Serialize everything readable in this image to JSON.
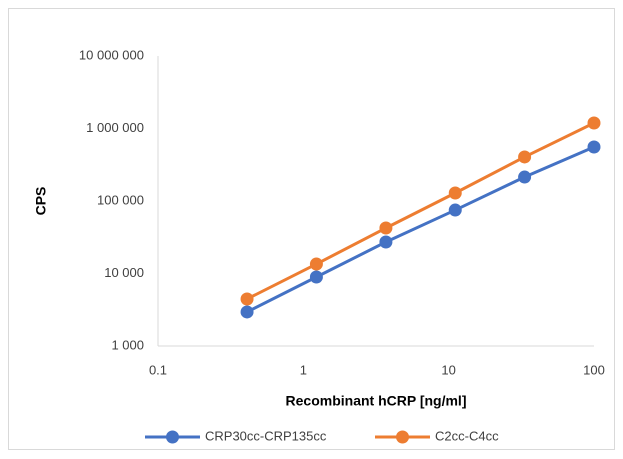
{
  "chart_data": {
    "type": "line",
    "xlabel": "Recombinant hCRP [ng/ml]",
    "ylabel": "CPS",
    "x": [
      0.41,
      1.23,
      3.7,
      11.1,
      33.3,
      100
    ],
    "series": [
      {
        "name": "CRP30cc-CRP135cc",
        "color": "#4472c4",
        "values": [
          2950,
          8950,
          27200,
          75000,
          214000,
          556000
        ]
      },
      {
        "name": "C2cc-C4cc",
        "color": "#ed7d31",
        "values": [
          4450,
          13500,
          42400,
          129000,
          405000,
          1190000
        ]
      }
    ],
    "xlog": true,
    "ylog": true,
    "xlim": [
      0.1,
      100
    ],
    "xticks": [
      0.1,
      1,
      10,
      100
    ],
    "ylim": [
      1000,
      10000000
    ],
    "yticks": [
      {
        "value": 1000,
        "label": "1 000"
      },
      {
        "value": 10000,
        "label": "10 000"
      },
      {
        "value": 100000,
        "label": "100 000"
      },
      {
        "value": 1000000,
        "label": "1 000 000"
      },
      {
        "value": 10000000,
        "label": "10 000 000"
      }
    ],
    "grid": false,
    "legend": "bottom"
  }
}
